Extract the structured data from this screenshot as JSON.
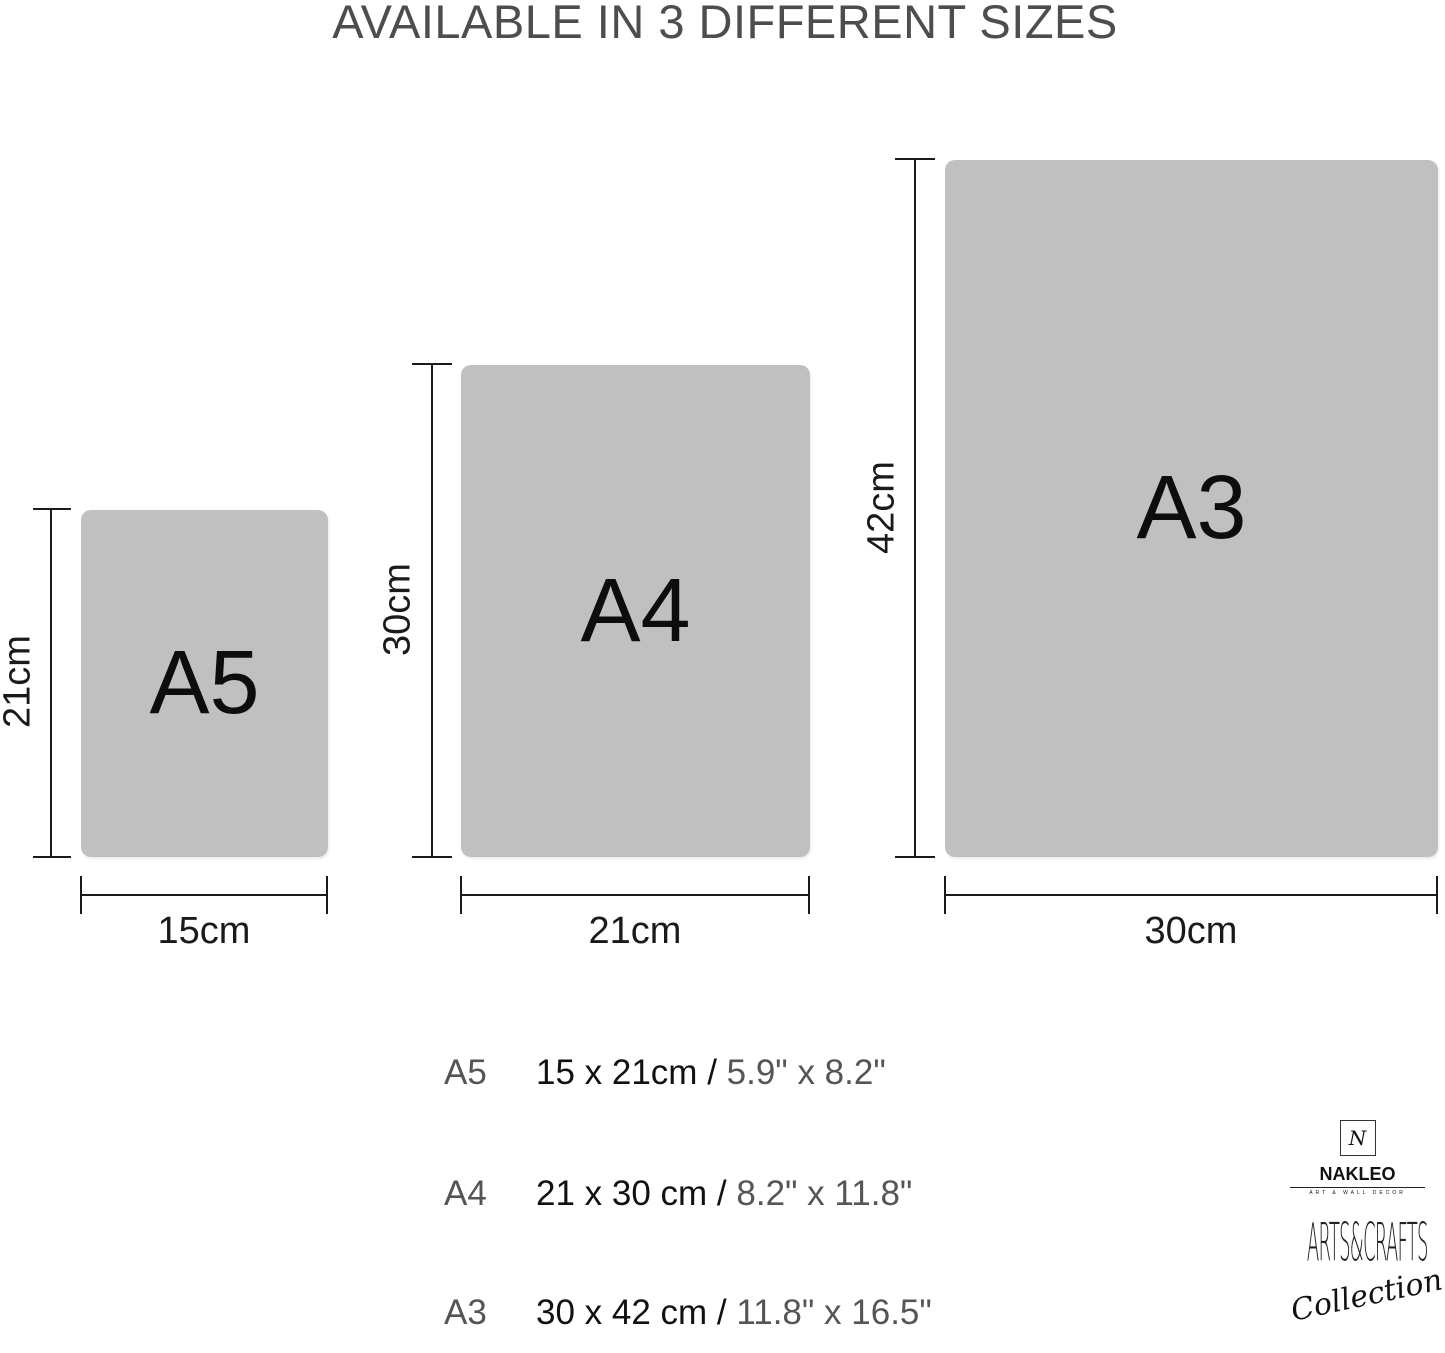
{
  "title": "AVAILABLE IN 3 DIFFERENT SIZES",
  "sheet_color": "#c1c0c1",
  "sizes": [
    {
      "name": "A5",
      "width_label": "15cm",
      "height_label": "21cm",
      "width_cm": 15,
      "height_cm": 21
    },
    {
      "name": "A4",
      "width_label": "21cm",
      "height_label": "30cm",
      "width_cm": 21,
      "height_cm": 30
    },
    {
      "name": "A3",
      "width_label": "30cm",
      "height_label": "42cm",
      "width_cm": 30,
      "height_cm": 42
    }
  ],
  "list": [
    {
      "code": "A5",
      "cm": "15 x 21cm /",
      "inch": "5.9\" x 8.2\""
    },
    {
      "code": "A4",
      "cm": "21 x 30 cm /",
      "inch": "8.2\" x 11.8\""
    },
    {
      "code": "A3",
      "cm": "30 x 42 cm /",
      "inch": "11.8\" x 16.5\""
    }
  ],
  "logo": {
    "brand": "NAKLEO",
    "tagline": "ART & WALL DECOR",
    "collection_title": "ARTS&CRAFTS",
    "collection_script": "Collection"
  }
}
